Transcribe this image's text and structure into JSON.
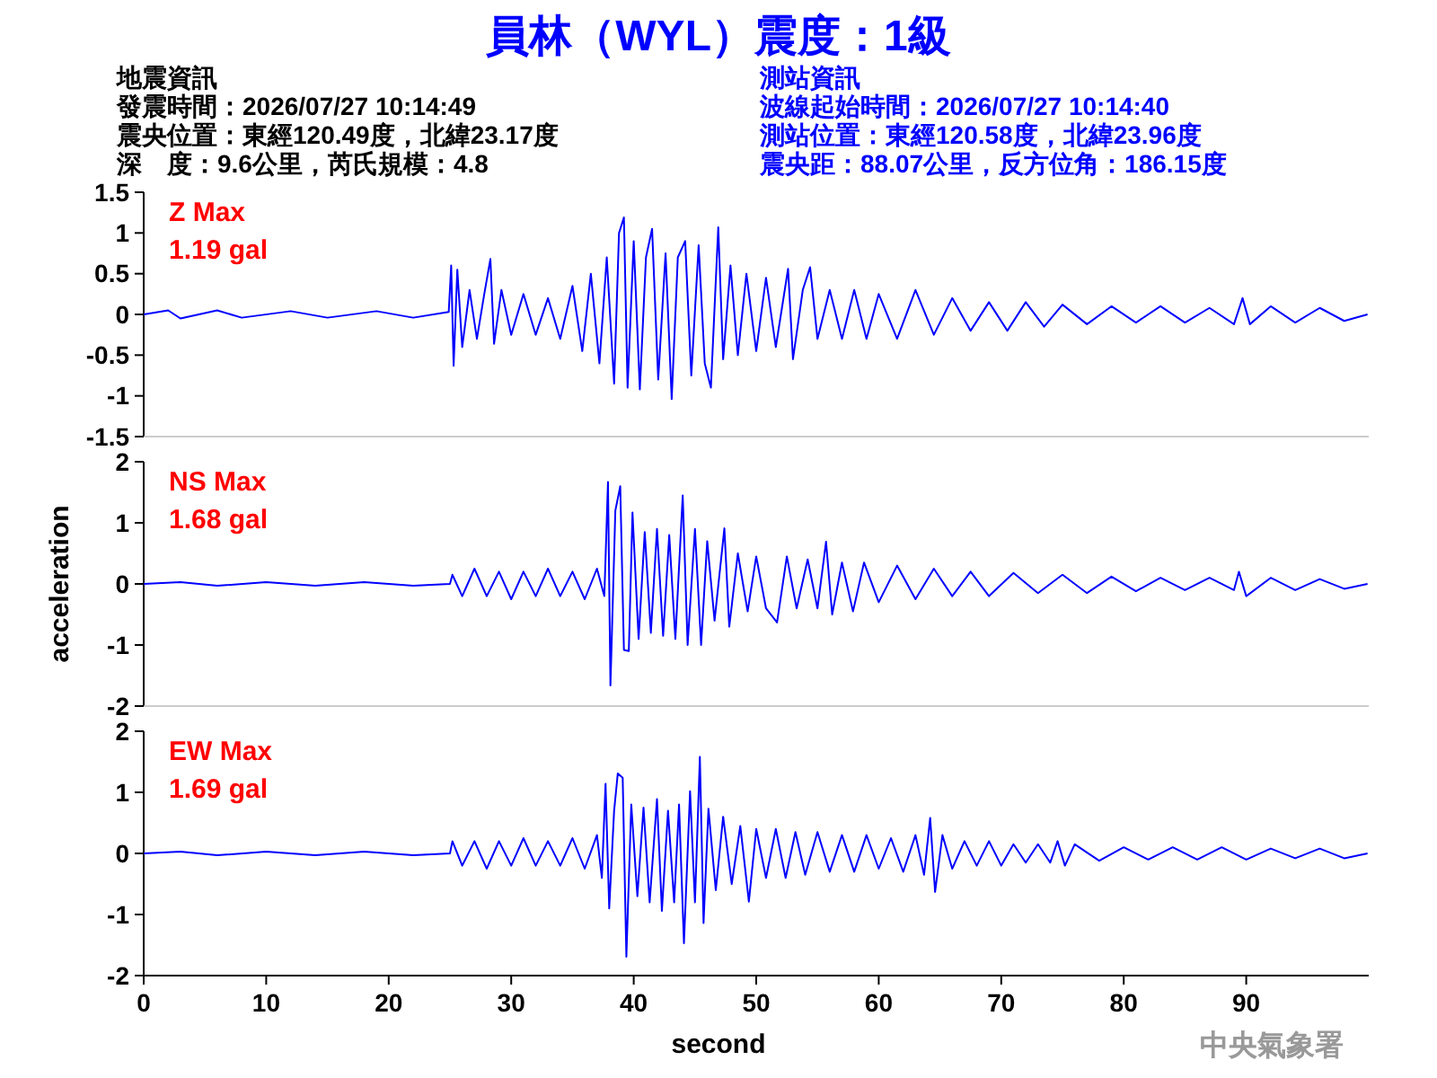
{
  "chart_data": [
    {
      "type": "other",
      "title": "員林（WYL）震度：1級",
      "annotations": [
        "地震資訊",
        "發震時間：2026/07/27 10:14:49",
        "震央位置：東經120.49度，北緯23.17度",
        "深　度：9.6公里，芮氏規模：4.8",
        "測站資訊",
        "波線起始時間：2026/07/27 10:14:40",
        "測站位置：東經120.58度，北緯23.96度",
        "震央距：88.07公里，反方位角：186.15度"
      ]
    },
    {
      "type": "line",
      "xlim": [
        0,
        100
      ],
      "ylim": [
        -1.5,
        1.5
      ],
      "yticks": [
        1.5,
        1,
        0.5,
        0,
        -0.5,
        -1,
        -1.5
      ],
      "tick_labels": "y",
      "annotations": [
        "Z Max",
        "1.19 gal"
      ],
      "series": [
        {
          "color": "#0000ff",
          "x": [
            0,
            2,
            3,
            6,
            8,
            12,
            15,
            19,
            22,
            24.9,
            25.1,
            25.3,
            25.6,
            26,
            26.6,
            27.2,
            27.8,
            28.3,
            28.6,
            29.2,
            30,
            31,
            32,
            33,
            34,
            35,
            35.8,
            36.5,
            37.2,
            37.8,
            38.4,
            38.8,
            39.2,
            39.5,
            40,
            40.5,
            41,
            41.5,
            42,
            42.6,
            43.1,
            43.6,
            44.2,
            44.7,
            45.3,
            45.8,
            46.3,
            46.9,
            47.3,
            47.9,
            48.5,
            49.2,
            50,
            50.8,
            51.6,
            52.6,
            53,
            53.8,
            54.4,
            55,
            56,
            57,
            58,
            59,
            60,
            61.5,
            63,
            64.5,
            66,
            67.5,
            69,
            70.5,
            72,
            73.5,
            75,
            77,
            79,
            81,
            83,
            85,
            87,
            89,
            89.7,
            90.3,
            92,
            94,
            96,
            98,
            99.9
          ],
          "values": [
            0,
            0.05,
            -0.05,
            0.05,
            -0.04,
            0.04,
            -0.04,
            0.04,
            -0.04,
            0.03,
            0.6,
            -0.63,
            0.55,
            -0.4,
            0.3,
            -0.3,
            0.25,
            0.68,
            -0.36,
            0.3,
            -0.25,
            0.25,
            -0.25,
            0.2,
            -0.3,
            0.35,
            -0.45,
            0.5,
            -0.6,
            0.7,
            -0.85,
            1.0,
            1.19,
            -0.9,
            0.9,
            -0.92,
            0.7,
            1.05,
            -0.8,
            0.75,
            -1.04,
            0.7,
            0.9,
            -0.75,
            0.85,
            -0.6,
            -0.9,
            1.07,
            -0.55,
            0.6,
            -0.5,
            0.5,
            -0.45,
            0.45,
            -0.4,
            0.56,
            -0.55,
            0.3,
            0.58,
            -0.3,
            0.3,
            -0.3,
            0.3,
            -0.3,
            0.25,
            -0.3,
            0.3,
            -0.25,
            0.2,
            -0.2,
            0.15,
            -0.2,
            0.15,
            -0.15,
            0.12,
            -0.12,
            0.1,
            -0.1,
            0.1,
            -0.1,
            0.08,
            -0.12,
            0.2,
            -0.12,
            0.1,
            -0.1,
            0.08,
            -0.08,
            0
          ]
        }
      ]
    },
    {
      "type": "line",
      "xlim": [
        0,
        100
      ],
      "ylim": [
        -2,
        2
      ],
      "yticks": [
        2,
        1,
        0,
        -1,
        -2
      ],
      "tick_labels": "y",
      "ylabel": "acceleration",
      "annotations": [
        "NS Max",
        "1.68 gal"
      ],
      "series": [
        {
          "color": "#0000ff",
          "x": [
            0,
            3,
            6,
            10,
            14,
            18,
            22,
            25,
            25.2,
            26,
            27,
            28,
            29,
            30,
            31,
            32,
            33,
            34,
            35,
            36,
            37,
            37.6,
            37.9,
            38.1,
            38.5,
            38.9,
            39.2,
            39.6,
            39.9,
            40.4,
            40.9,
            41.4,
            41.9,
            42.4,
            42.9,
            43.4,
            44,
            44.4,
            45,
            45.5,
            46,
            46.6,
            47.4,
            47.8,
            48.5,
            49.3,
            50,
            50.8,
            51.7,
            52.5,
            53.3,
            54.2,
            55,
            55.7,
            56.2,
            57,
            57.9,
            58.8,
            60,
            61.5,
            63,
            64.5,
            66,
            67.5,
            69,
            71,
            73,
            75,
            77,
            79,
            81,
            83,
            85,
            87,
            89,
            89.4,
            90,
            92,
            94,
            96,
            98,
            99.9
          ],
          "values": [
            0,
            0.03,
            -0.03,
            0.03,
            -0.03,
            0.03,
            -0.03,
            0,
            0.15,
            -0.2,
            0.25,
            -0.2,
            0.2,
            -0.25,
            0.2,
            -0.2,
            0.25,
            -0.2,
            0.2,
            -0.25,
            0.25,
            -0.2,
            1.67,
            -1.66,
            1.2,
            1.6,
            -1.08,
            -1.1,
            1.17,
            -0.9,
            0.85,
            -0.8,
            0.9,
            -0.85,
            0.8,
            -0.9,
            1.45,
            -1.0,
            0.9,
            -1.0,
            0.7,
            -0.6,
            0.91,
            -0.7,
            0.5,
            -0.45,
            0.45,
            -0.4,
            -0.63,
            0.45,
            -0.4,
            0.4,
            -0.4,
            0.69,
            -0.5,
            0.35,
            -0.45,
            0.35,
            -0.3,
            0.3,
            -0.25,
            0.25,
            -0.2,
            0.2,
            -0.2,
            0.18,
            -0.15,
            0.15,
            -0.15,
            0.12,
            -0.12,
            0.1,
            -0.1,
            0.1,
            -0.1,
            0.2,
            -0.2,
            0.1,
            -0.1,
            0.08,
            -0.08,
            0
          ]
        }
      ]
    },
    {
      "type": "line",
      "xlim": [
        0,
        100
      ],
      "ylim": [
        -2,
        2
      ],
      "yticks": [
        2,
        1,
        0,
        -1,
        -2
      ],
      "xticks": [
        0,
        10,
        20,
        30,
        40,
        50,
        60,
        70,
        80,
        90
      ],
      "xlabel": "second",
      "annotations": [
        "EW Max",
        "1.69 gal",
        "中央氣象署"
      ],
      "series": [
        {
          "color": "#0000ff",
          "x": [
            0,
            3,
            6,
            10,
            14,
            18,
            22,
            25,
            25.2,
            26,
            27,
            28,
            29,
            30,
            31,
            32,
            33,
            34,
            35,
            36,
            37,
            37.4,
            37.7,
            38,
            38.4,
            38.7,
            39.1,
            39.4,
            39.8,
            40.3,
            40.8,
            41.3,
            41.9,
            42.3,
            42.8,
            43.3,
            43.7,
            44.1,
            44.6,
            45,
            45.4,
            45.7,
            46.1,
            46.7,
            47.3,
            48,
            48.7,
            49.4,
            50,
            50.8,
            51.6,
            52.4,
            53.2,
            54,
            55,
            56,
            57,
            58,
            59,
            60,
            61,
            62,
            63,
            63.7,
            64.2,
            64.6,
            65.2,
            66,
            67,
            68,
            69,
            70,
            71,
            72,
            73,
            74,
            74.6,
            75.2,
            76,
            78,
            80,
            82,
            84,
            86,
            88,
            90,
            92,
            94,
            96,
            98,
            99.9
          ],
          "values": [
            0,
            0.03,
            -0.03,
            0.03,
            -0.03,
            0.03,
            -0.03,
            0,
            0.2,
            -0.2,
            0.2,
            -0.25,
            0.2,
            -0.2,
            0.25,
            -0.2,
            0.2,
            -0.2,
            0.25,
            -0.25,
            0.3,
            -0.4,
            1.14,
            -0.9,
            0.7,
            1.31,
            1.24,
            -1.69,
            0.8,
            -0.7,
            0.75,
            -0.8,
            0.89,
            -0.94,
            0.7,
            -0.8,
            0.8,
            -1.47,
            1.02,
            -0.8,
            1.58,
            -1.14,
            0.73,
            -0.6,
            0.6,
            -0.5,
            0.45,
            -0.79,
            0.4,
            -0.4,
            0.4,
            -0.4,
            0.35,
            -0.35,
            0.35,
            -0.3,
            0.3,
            -0.3,
            0.3,
            -0.25,
            0.25,
            -0.3,
            0.3,
            -0.35,
            0.58,
            -0.63,
            0.3,
            -0.25,
            0.2,
            -0.2,
            0.2,
            -0.2,
            0.15,
            -0.15,
            0.15,
            -0.15,
            0.2,
            -0.2,
            0.15,
            -0.12,
            0.1,
            -0.1,
            0.1,
            -0.1,
            0.1,
            -0.1,
            0.08,
            -0.08,
            0.08,
            -0.08,
            0
          ]
        }
      ]
    }
  ]
}
